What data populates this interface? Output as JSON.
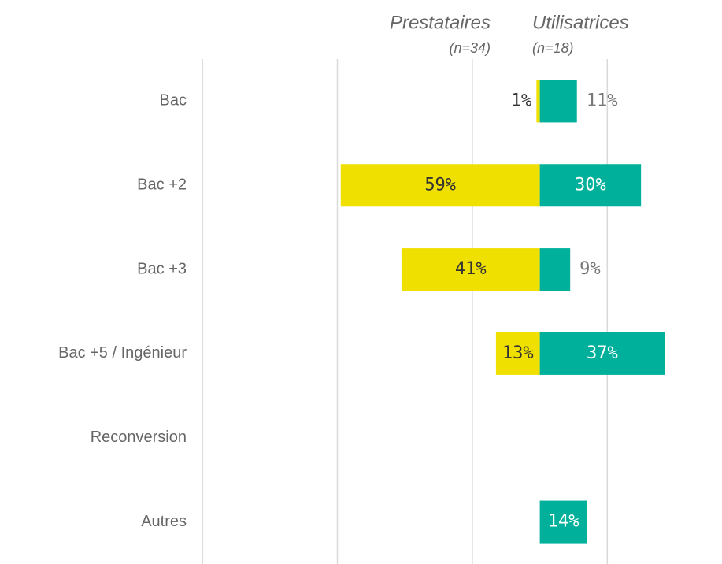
{
  "chart_data": {
    "type": "diverging-bar",
    "categories": [
      "Bac",
      "Bac +2",
      "Bac +3",
      "Bac +5 / Ingénieur",
      "Reconversion",
      "Autres"
    ],
    "series": [
      {
        "name": "Prestataires",
        "subtitle": "(n=34)",
        "color": "#f0e000",
        "side": "left",
        "values": [
          1,
          59,
          41,
          13,
          null,
          null
        ],
        "value_labels": [
          "1%",
          "59%",
          "41%",
          "13%",
          null,
          null
        ]
      },
      {
        "name": "Utilisatrices",
        "subtitle": "(n=18)",
        "color": "#00b09b",
        "side": "right",
        "values": [
          11,
          30,
          9,
          37,
          null,
          14
        ],
        "value_labels": [
          "11%",
          "30%",
          "9%",
          "37%",
          null,
          "14%"
        ]
      }
    ],
    "xlim": [
      -160,
      54
    ],
    "xticks": [
      -100,
      -60,
      -20,
      20
    ],
    "grid": true
  }
}
